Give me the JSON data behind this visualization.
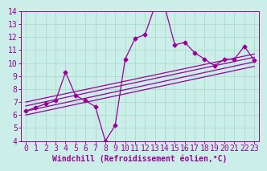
{
  "title": "",
  "xlabel": "Windchill (Refroidissement éolien,°C)",
  "xlim": [
    -0.5,
    23.5
  ],
  "ylim": [
    4,
    14
  ],
  "xticks": [
    0,
    1,
    2,
    3,
    4,
    5,
    6,
    7,
    8,
    9,
    10,
    11,
    12,
    13,
    14,
    15,
    16,
    17,
    18,
    19,
    20,
    21,
    22,
    23
  ],
  "yticks": [
    4,
    5,
    6,
    7,
    8,
    9,
    10,
    11,
    12,
    13,
    14
  ],
  "bg_color": "#cceee8",
  "line_color": "#990099",
  "grid_color": "#aaddcc",
  "data_x": [
    0,
    1,
    2,
    3,
    4,
    5,
    6,
    7,
    8,
    9,
    10,
    11,
    12,
    13,
    14,
    15,
    16,
    17,
    18,
    19,
    20,
    21,
    22,
    23
  ],
  "data_y": [
    6.3,
    6.6,
    6.85,
    7.1,
    9.3,
    7.5,
    7.1,
    6.65,
    4.0,
    5.2,
    10.3,
    11.9,
    12.2,
    14.4,
    14.3,
    11.4,
    11.6,
    10.8,
    10.3,
    9.8,
    10.3,
    10.3,
    11.3,
    10.2
  ],
  "reg_y_start": 6.3,
  "reg_y_end": 10.1,
  "upper1_y_start": 6.7,
  "upper1_y_end": 10.45,
  "upper2_y_start": 7.0,
  "upper2_y_end": 10.7,
  "lower1_y_start": 6.0,
  "lower1_y_end": 9.75,
  "font_size": 7,
  "marker_size": 2.5
}
